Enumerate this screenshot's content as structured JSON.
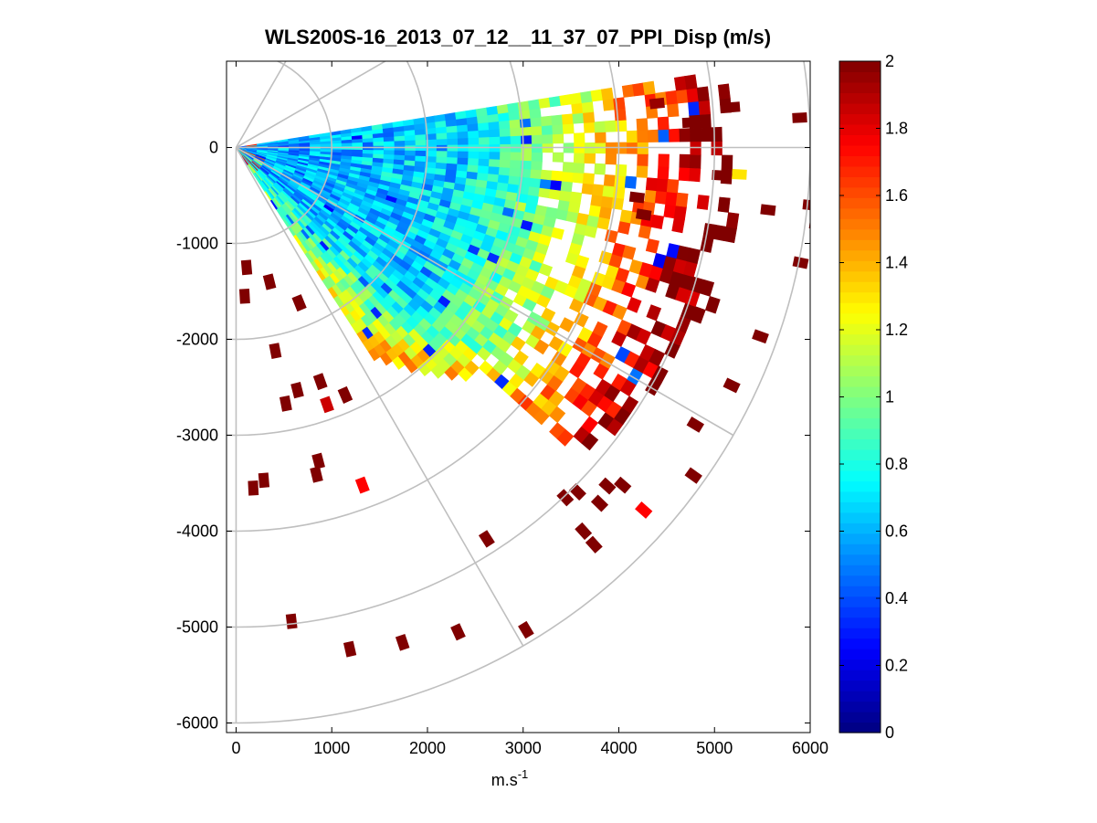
{
  "chart_data": {
    "type": "heatmap",
    "subtype": "polar-ppi-scan",
    "title": "WLS200S-16_2013_07_12__11_37_07_PPI_Disp (m/s)",
    "xlabel": "m.s",
    "xlabel_superscript": "-1",
    "ylabel": "",
    "xlim": [
      -100,
      6000
    ],
    "ylim": [
      -6100,
      900
    ],
    "x_ticks": [
      0,
      1000,
      2000,
      3000,
      4000,
      5000,
      6000
    ],
    "x_tick_labels": [
      "0",
      "1000",
      "2000",
      "3000",
      "4000",
      "5000",
      "6000"
    ],
    "y_ticks": [
      0,
      -1000,
      -2000,
      -3000,
      -4000,
      -5000,
      -6000
    ],
    "y_tick_labels": [
      "0",
      "-1000",
      "-2000",
      "-3000",
      "-4000",
      "-5000",
      "-6000"
    ],
    "grid": "polar",
    "polar_grid": {
      "ring_radii": [
        1000,
        2000,
        3000,
        4000,
        5000,
        6000
      ],
      "spoke_angles_deg": [
        0,
        -30,
        -60,
        -90,
        60,
        30
      ]
    },
    "scan": {
      "origin": [
        0,
        0
      ],
      "angle_start_deg": 9,
      "angle_end_deg": -57,
      "range_start": 0,
      "range_end": 5300
    },
    "colorbar": {
      "colormap": "jet",
      "min": 0,
      "max": 2,
      "ticks": [
        0,
        0.2,
        0.4,
        0.6,
        0.8,
        1,
        1.2,
        1.4,
        1.6,
        1.8,
        2
      ],
      "tick_labels": [
        "0",
        "0.2",
        "0.4",
        "0.6",
        "0.8",
        "1",
        "1.2",
        "1.4",
        "1.6",
        "1.8",
        "2"
      ]
    },
    "scattered_cells": [
      {
        "x": 110,
        "y": -1250,
        "v": 2.0
      },
      {
        "x": 90,
        "y": -1550,
        "v": 2.0
      },
      {
        "x": 350,
        "y": -1400,
        "v": 2.0
      },
      {
        "x": 660,
        "y": -1620,
        "v": 2.0
      },
      {
        "x": 410,
        "y": -2120,
        "v": 2.0
      },
      {
        "x": 640,
        "y": -2530,
        "v": 2.0
      },
      {
        "x": 880,
        "y": -2440,
        "v": 2.0
      },
      {
        "x": 1140,
        "y": -2580,
        "v": 2.0
      },
      {
        "x": 520,
        "y": -2670,
        "v": 2.0
      },
      {
        "x": 950,
        "y": -2680,
        "v": 1.85
      },
      {
        "x": 860,
        "y": -3270,
        "v": 2.0
      },
      {
        "x": 840,
        "y": -3410,
        "v": 2.0
      },
      {
        "x": 290,
        "y": -3470,
        "v": 2.0
      },
      {
        "x": 180,
        "y": -3550,
        "v": 2.0
      },
      {
        "x": 1320,
        "y": -3520,
        "v": 1.75
      },
      {
        "x": 580,
        "y": -4940,
        "v": 2.0
      },
      {
        "x": 1190,
        "y": -5230,
        "v": 2.0
      },
      {
        "x": 1740,
        "y": -5160,
        "v": 2.0
      },
      {
        "x": 2320,
        "y": -5050,
        "v": 2.0
      },
      {
        "x": 3030,
        "y": -5030,
        "v": 2.0
      },
      {
        "x": 2620,
        "y": -4080,
        "v": 2.0
      },
      {
        "x": 3440,
        "y": -3650,
        "v": 2.0
      },
      {
        "x": 3570,
        "y": -3590,
        "v": 2.0
      },
      {
        "x": 3880,
        "y": -3530,
        "v": 2.0
      },
      {
        "x": 3800,
        "y": -3710,
        "v": 2.0
      },
      {
        "x": 4040,
        "y": -3520,
        "v": 2.0
      },
      {
        "x": 4260,
        "y": -3780,
        "v": 1.75
      },
      {
        "x": 3630,
        "y": -4000,
        "v": 2.0
      },
      {
        "x": 3740,
        "y": -4140,
        "v": 2.0
      },
      {
        "x": 4780,
        "y": -3420,
        "v": 2.0
      },
      {
        "x": 4800,
        "y": -2890,
        "v": 2.0
      },
      {
        "x": 5180,
        "y": -2480,
        "v": 2.0
      },
      {
        "x": 5480,
        "y": -1970,
        "v": 2.0
      },
      {
        "x": 5900,
        "y": -1200,
        "v": 2.0
      },
      {
        "x": 6070,
        "y": -800,
        "v": 2.0
      },
      {
        "x": 6000,
        "y": -600,
        "v": 2.0
      },
      {
        "x": 5560,
        "y": -650,
        "v": 2.0
      },
      {
        "x": 5260,
        "y": -280,
        "v": 1.3
      },
      {
        "x": 5050,
        "y": -290,
        "v": 2.0
      },
      {
        "x": 5890,
        "y": 310,
        "v": 2.0
      },
      {
        "x": 5190,
        "y": 420,
        "v": 2.0
      },
      {
        "x": 4740,
        "y": 260,
        "v": 2.0
      },
      {
        "x": 4400,
        "y": 460,
        "v": 1.95
      },
      {
        "x": 4190,
        "y": -520,
        "v": 2.0
      },
      {
        "x": 4260,
        "y": -700,
        "v": 2.0
      }
    ]
  }
}
